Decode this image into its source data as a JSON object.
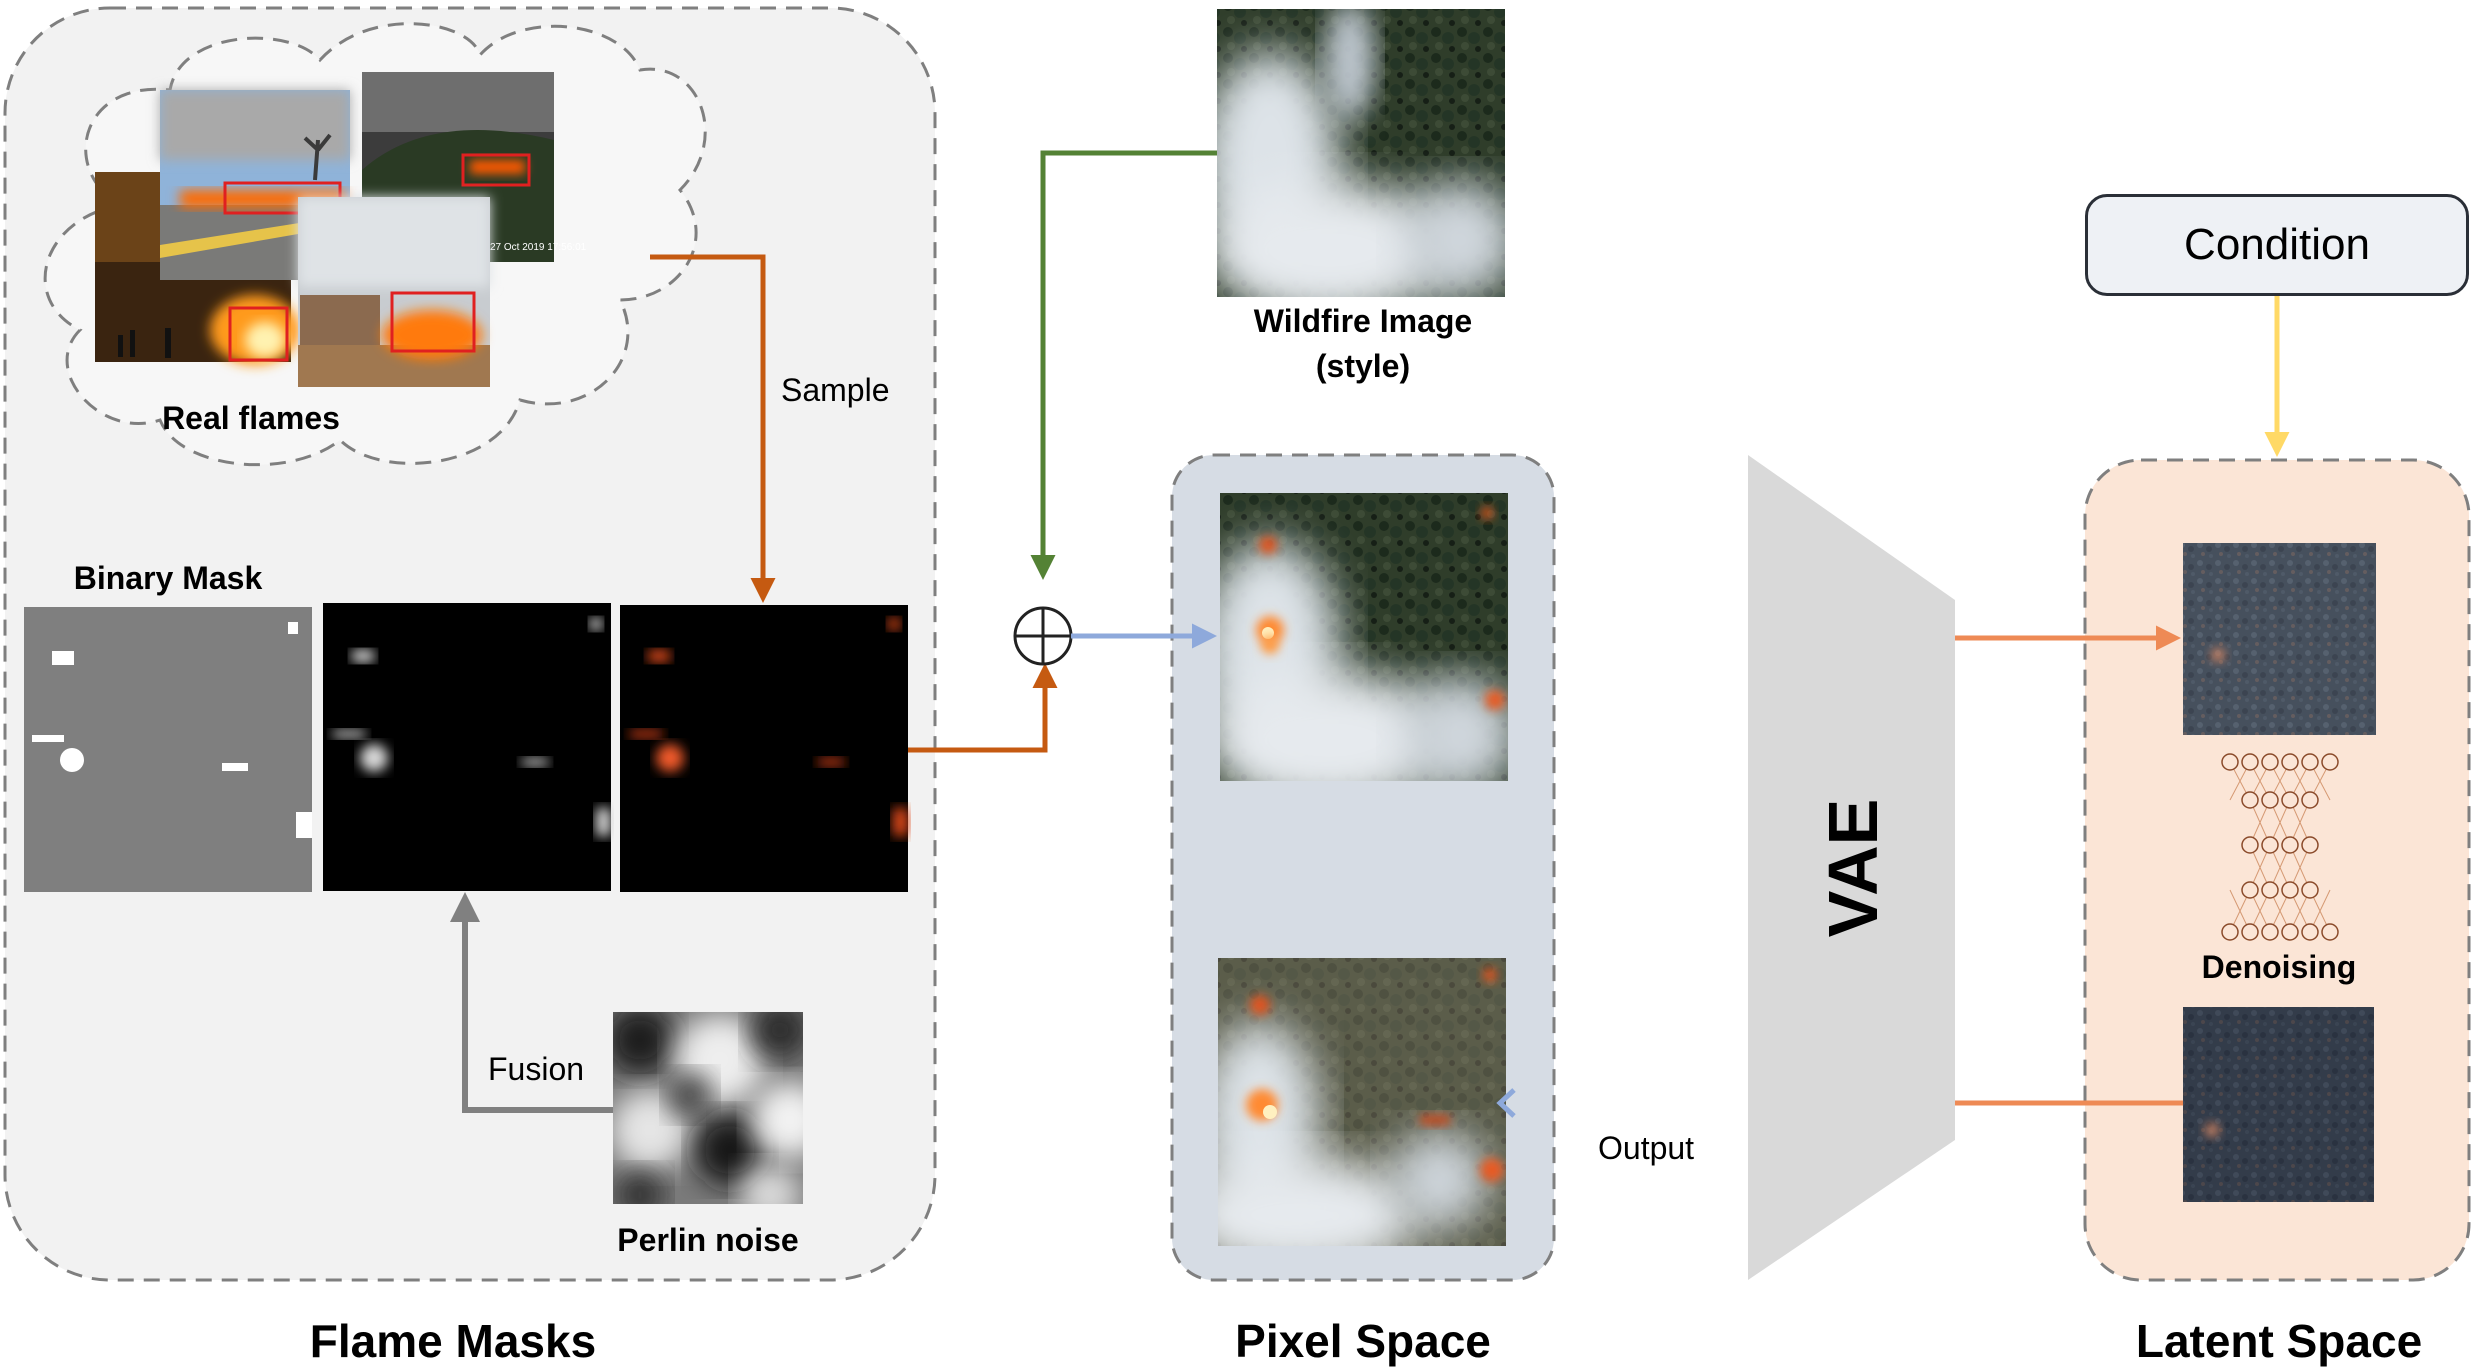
{
  "flame_masks": {
    "title": "Flame Masks",
    "real_flames_label": "Real flames",
    "binary_mask_label": "Binary Mask",
    "perlin_noise_label": "Perlin noise",
    "sample_label": "Sample",
    "fusion_label": "Fusion",
    "photo_timestamp": "27 Oct 2019  17:56:01"
  },
  "wildfire_style": {
    "label_line1": "Wildfire Image",
    "label_line2": "(style)"
  },
  "pixel_space": {
    "title": "Pixel Space",
    "output_label": "Output"
  },
  "vae": {
    "label": "VAE"
  },
  "latent_space": {
    "title": "Latent Space",
    "condition_label": "Condition",
    "denoising_label": "Denoising"
  },
  "colors": {
    "sample_arrow": "#c55a11",
    "style_arrow": "#548235",
    "fusion_arrow": "#808080",
    "pixel_to_vae": "#8ea9db",
    "vae_to_latent": "#f4b183",
    "condition_arrow": "#ffd966",
    "pixel_panel_bg": "#d6dce4",
    "latent_panel_bg": "#fbe5d6",
    "flame_panel_bg": "#f2f2f2"
  }
}
